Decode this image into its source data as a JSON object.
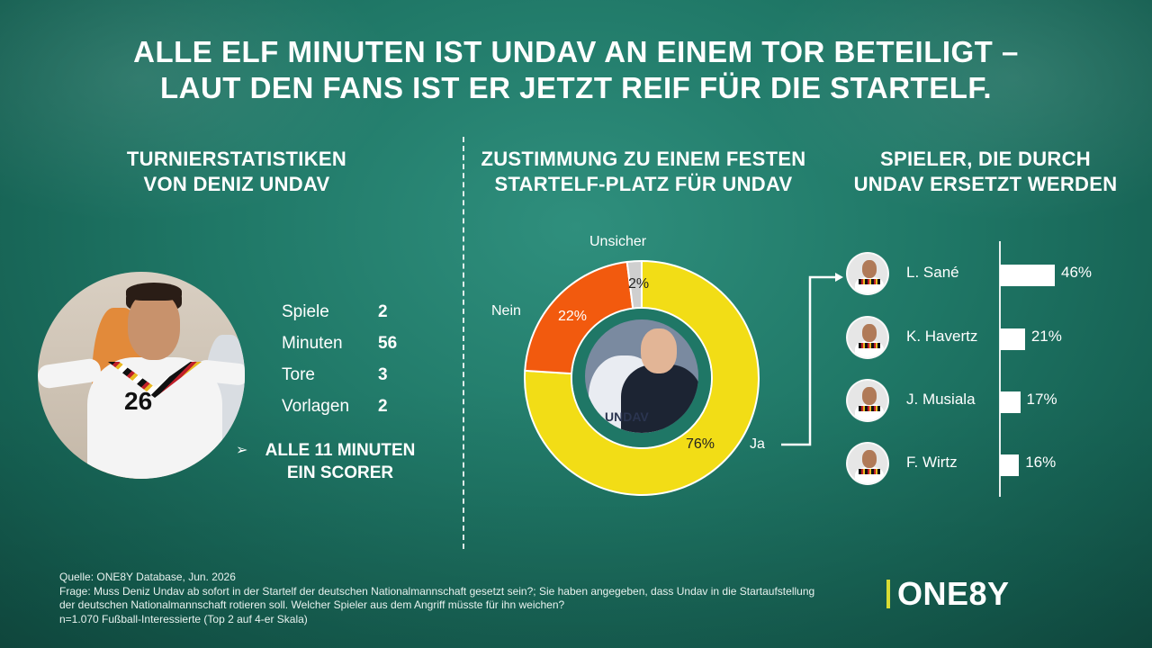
{
  "headline": {
    "line1": "ALLE ELF MINUTEN IST UNDAV AN EINEM TOR BETEILIGT –",
    "line2": "LAUT DEN FANS IST ER JETZT REIF FÜR DIE STARTELF."
  },
  "stats_section": {
    "title_line1": "TURNIERSTATISTIKEN",
    "title_line2": "VON DENIZ UNDAV",
    "photo_number": "26",
    "rows": [
      {
        "label": "Spiele",
        "value": "2"
      },
      {
        "label": "Minuten",
        "value": "56"
      },
      {
        "label": "Tore",
        "value": "3"
      },
      {
        "label": "Vorlagen",
        "value": "2"
      }
    ],
    "scorer_arrow": "➢",
    "scorer_line1": "ALLE 11 MINUTEN",
    "scorer_line2": "EIN SCORER"
  },
  "approval_section": {
    "title_line1": "ZUSTIMMUNG ZU EINEM FESTEN",
    "title_line2": "STARTELF-PLATZ FÜR UNDAV",
    "photo_text": "UNDAV"
  },
  "replace_section": {
    "title_line1": "SPIELER, DIE DURCH",
    "title_line2": "UNDAV ERSETZT WERDEN"
  },
  "chart_data": [
    {
      "type": "pie",
      "style": "donut",
      "categories": [
        "Ja",
        "Nein",
        "Unsicher"
      ],
      "values": [
        76,
        22,
        2
      ],
      "value_labels": [
        "76%",
        "22%",
        "2%"
      ],
      "colors": [
        "#f2dd16",
        "#f25a0e",
        "#cfcfcf"
      ]
    },
    {
      "type": "bar",
      "orientation": "horizontal",
      "categories": [
        "L. Sané",
        "K. Havertz",
        "J. Musiala",
        "F. Wirtz"
      ],
      "values": [
        46,
        21,
        17,
        16
      ],
      "value_labels": [
        "46%",
        "21%",
        "17%",
        "16%"
      ],
      "xlim": [
        0,
        100
      ],
      "bar_color": "#ffffff"
    }
  ],
  "footer": {
    "source": "Quelle: ONE8Y Database, Jun. 2026",
    "question_line1": "Frage: Muss Deniz Undav ab sofort in der Startelf der deutschen Nationalmannschaft gesetzt sein?; Sie haben angegeben, dass Undav in die Startaufstellung",
    "question_line2": "der deutschen Nationalmannschaft rotieren soll. Welcher Spieler aus dem Angriff müsste für ihn weichen?",
    "sample": "n=1.070 Fußball-Interessierte (Top 2 auf 4-er Skala)"
  },
  "brand": {
    "logo_text": "ONE8Y",
    "accent": "#d8dc34"
  }
}
